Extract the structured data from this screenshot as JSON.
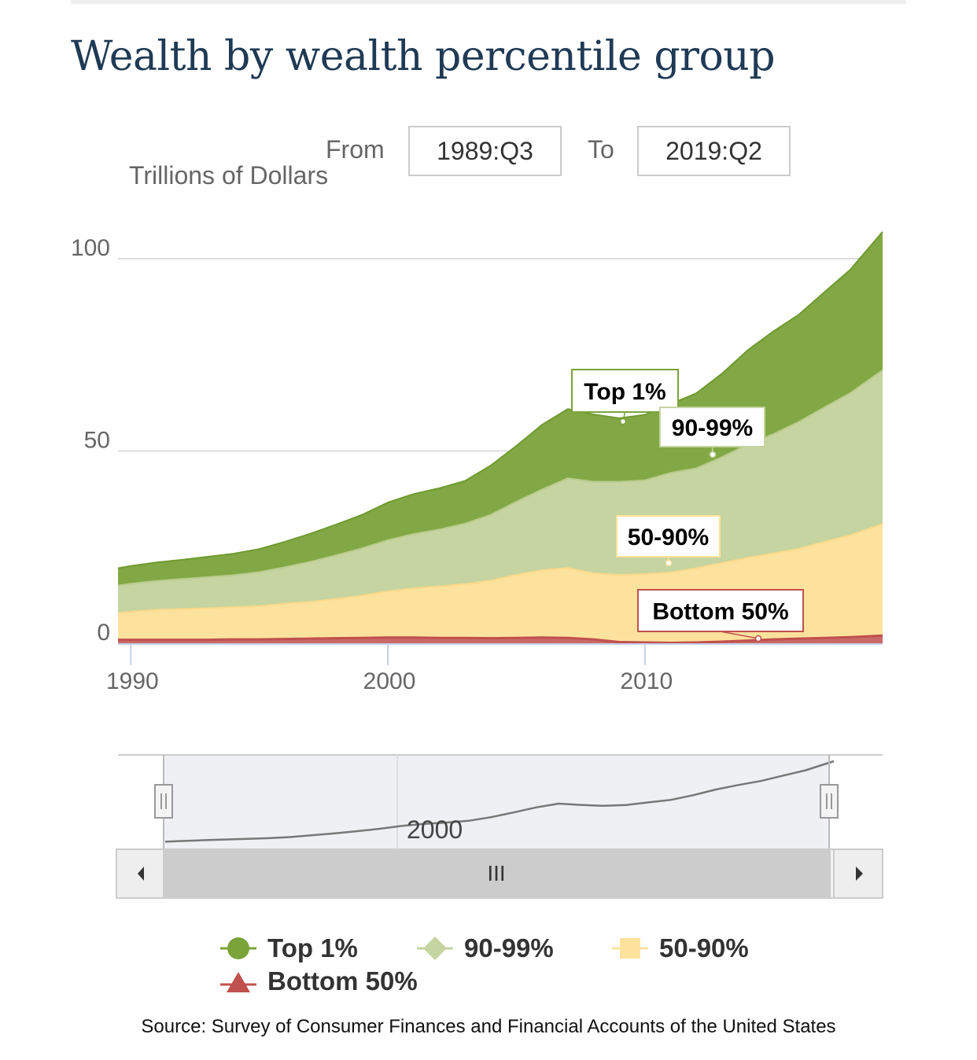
{
  "page": {
    "title": "Wealth by wealth percentile group",
    "range": {
      "from_label": "From",
      "from_value": "1989:Q3",
      "to_label": "To",
      "to_value": "2019:Q2"
    },
    "source": "Source: Survey of Consumer Finances and Financial Accounts of the United States"
  },
  "navigator": {
    "axis_label": "2000",
    "scroll_handle_label": "III"
  },
  "chart_data": {
    "type": "area",
    "stacked": true,
    "ylabel": "Trillions of Dollars",
    "ylim": [
      0,
      107
    ],
    "xlim": [
      1989.5,
      2019.25
    ],
    "yticks": [
      0,
      50,
      100
    ],
    "xticks": [
      1990,
      2000,
      2010
    ],
    "grid": "horizontal",
    "legend_position": "bottom",
    "x": [
      1989.5,
      1990,
      1991,
      1992,
      1993,
      1994,
      1995,
      1996,
      1997,
      1998,
      1999,
      2000,
      2001,
      2002,
      2003,
      2004,
      2005,
      2006,
      2007,
      2008,
      2009,
      2010,
      2011,
      2012,
      2013,
      2014,
      2015,
      2016,
      2017,
      2018,
      2019.25
    ],
    "series": [
      {
        "name": "Bottom 50%",
        "color": "#c0504d",
        "marker": "triangle",
        "values": [
          0.9,
          0.9,
          0.9,
          0.9,
          0.9,
          1.0,
          1.0,
          1.1,
          1.2,
          1.3,
          1.4,
          1.5,
          1.5,
          1.4,
          1.4,
          1.3,
          1.4,
          1.5,
          1.4,
          1.0,
          0.3,
          0.2,
          0.1,
          0.2,
          0.4,
          0.7,
          1.0,
          1.2,
          1.4,
          1.6,
          2.0
        ]
      },
      {
        "name": "50-90%",
        "color": "#fde29d",
        "marker": "square",
        "values": [
          7.0,
          7.3,
          7.8,
          8.0,
          8.2,
          8.4,
          8.7,
          9.2,
          9.6,
          10.2,
          11.0,
          12.0,
          12.8,
          13.4,
          14.0,
          15.0,
          16.4,
          17.5,
          18.2,
          17.2,
          17.5,
          17.8,
          18.3,
          19.3,
          20.5,
          21.5,
          22.4,
          23.4,
          25.0,
          26.5,
          29.0
        ]
      },
      {
        "name": "90-99%",
        "color": "#c5d4a0",
        "marker": "diamond",
        "values": [
          7.1,
          7.3,
          7.5,
          7.8,
          8.1,
          8.3,
          8.8,
          9.5,
          10.4,
          11.4,
          12.3,
          13.3,
          14.1,
          14.8,
          15.7,
          17.1,
          19.0,
          21.0,
          23.3,
          23.8,
          24.2,
          24.4,
          25.9,
          26.0,
          27.5,
          29.5,
          31.0,
          33.0,
          35.0,
          37.0,
          40.0
        ]
      },
      {
        "name": "Top 1%",
        "color": "#7aa33a",
        "marker": "circle",
        "values": [
          4.5,
          4.6,
          4.8,
          5.0,
          5.3,
          5.6,
          6.0,
          6.6,
          7.3,
          8.0,
          8.7,
          9.8,
          10.4,
          10.7,
          11.1,
          12.8,
          14.5,
          16.8,
          18.0,
          17.5,
          16.5,
          17.0,
          17.9,
          19.5,
          21.7,
          24.5,
          26.7,
          27.9,
          30.0,
          32.1,
          36.0
        ]
      }
    ],
    "annotations": [
      {
        "text": "Top 1%",
        "x": 2009.0,
        "y": 58
      },
      {
        "text": "90-99%",
        "x": 2012.5,
        "y": 49
      },
      {
        "text": "50-90%",
        "x": 2011.0,
        "y": 20
      },
      {
        "text": "Bottom 50%",
        "x": 2014.5,
        "y": 0.5
      }
    ]
  }
}
